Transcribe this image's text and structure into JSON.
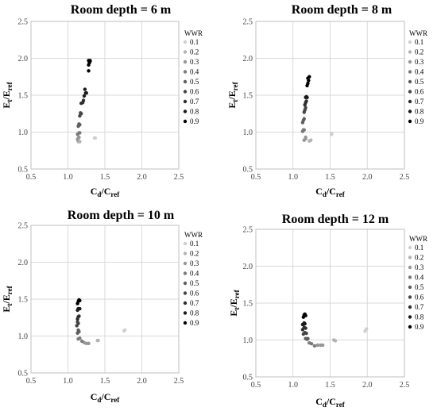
{
  "chart_data": [
    {
      "type": "scatter",
      "title": "Room depth = 6 m",
      "xlabel": "Cd/Cref",
      "xlabel_main": "C",
      "xlabel_sub1": "d",
      "xlabel_sep": "/C",
      "xlabel_sub2": "ref",
      "ylabel": "Et/Eref",
      "ylabel_main": "E",
      "ylabel_sub1": "t",
      "ylabel_sep": "/E",
      "ylabel_sub2": "ref",
      "xlim": [
        0.5,
        2.5
      ],
      "ylim": [
        0.5,
        2.5
      ],
      "xticks": [
        "0.5",
        "1.0",
        "1.5",
        "2.0",
        "2.5"
      ],
      "yticks": [
        "0.5",
        "1.0",
        "1.5",
        "2.0",
        "2.5"
      ],
      "grid": true,
      "legend": {
        "title": "WWR",
        "position": "right"
      },
      "series": [
        {
          "name": "0.1",
          "color": "#cfcfcf",
          "points": [
            [
              1.36,
              0.92
            ],
            [
              1.37,
              0.92
            ]
          ]
        },
        {
          "name": "0.2",
          "color": "#b3b3b3",
          "points": [
            [
              1.14,
              0.87
            ],
            [
              1.16,
              0.87
            ]
          ]
        },
        {
          "name": "0.3",
          "color": "#969696",
          "points": [
            [
              1.13,
              0.9
            ],
            [
              1.14,
              0.92
            ],
            [
              1.15,
              0.93
            ]
          ]
        },
        {
          "name": "0.4",
          "color": "#7a7a7a",
          "points": [
            [
              1.13,
              0.97
            ],
            [
              1.15,
              0.99
            ],
            [
              1.16,
              0.99
            ]
          ]
        },
        {
          "name": "0.5",
          "color": "#5e5e5e",
          "points": [
            [
              1.14,
              1.08
            ],
            [
              1.16,
              1.1
            ],
            [
              1.15,
              1.11
            ]
          ]
        },
        {
          "name": "0.6",
          "color": "#454545",
          "points": [
            [
              1.16,
              1.22
            ],
            [
              1.18,
              1.25
            ],
            [
              1.17,
              1.26
            ]
          ]
        },
        {
          "name": "0.7",
          "color": "#2e2e2e",
          "points": [
            [
              1.18,
              1.39
            ],
            [
              1.2,
              1.4
            ],
            [
              1.21,
              1.43
            ]
          ]
        },
        {
          "name": "0.8",
          "color": "#1a1a1a",
          "points": [
            [
              1.22,
              1.49
            ],
            [
              1.24,
              1.53
            ],
            [
              1.25,
              1.53
            ],
            [
              1.23,
              1.58
            ]
          ]
        },
        {
          "name": "0.9",
          "color": "#000000",
          "points": [
            [
              1.28,
              1.83
            ],
            [
              1.28,
              1.91
            ],
            [
              1.29,
              1.94
            ],
            [
              1.3,
              1.96
            ],
            [
              1.28,
              1.97
            ],
            [
              1.3,
              1.97
            ]
          ]
        }
      ]
    },
    {
      "type": "scatter",
      "title": "Room depth = 8 m",
      "xlabel": "Cd/Cref",
      "xlabel_main": "C",
      "xlabel_sub1": "d",
      "xlabel_sep": "/C",
      "xlabel_sub2": "ref",
      "ylabel": "Et/Eref",
      "ylabel_main": "E",
      "ylabel_sub1": "t",
      "ylabel_sep": "/E",
      "ylabel_sub2": "ref",
      "xlim": [
        0.5,
        2.5
      ],
      "ylim": [
        0.5,
        2.5
      ],
      "xticks": [
        "0.5",
        "1.0",
        "1.5",
        "2.0",
        "2.5"
      ],
      "yticks": [
        "0.5",
        "1.0",
        "1.5",
        "2.0",
        "2.5"
      ],
      "grid": true,
      "legend": {
        "title": "WWR",
        "position": "right"
      },
      "series": [
        {
          "name": "0.1",
          "color": "#cfcfcf",
          "points": [
            [
              1.52,
              0.97
            ],
            [
              1.52,
              0.98
            ]
          ]
        },
        {
          "name": "0.2",
          "color": "#b3b3b3",
          "points": [
            [
              1.22,
              0.88
            ],
            [
              1.24,
              0.89
            ]
          ]
        },
        {
          "name": "0.3",
          "color": "#969696",
          "points": [
            [
              1.15,
              0.89
            ],
            [
              1.17,
              0.91
            ],
            [
              1.17,
              0.93
            ]
          ]
        },
        {
          "name": "0.4",
          "color": "#7a7a7a",
          "points": [
            [
              1.13,
              1.01
            ],
            [
              1.14,
              1.03
            ],
            [
              1.15,
              1.03
            ]
          ]
        },
        {
          "name": "0.5",
          "color": "#5e5e5e",
          "points": [
            [
              1.13,
              1.13
            ],
            [
              1.14,
              1.16
            ],
            [
              1.15,
              1.18
            ]
          ]
        },
        {
          "name": "0.6",
          "color": "#454545",
          "points": [
            [
              1.15,
              1.27
            ],
            [
              1.16,
              1.3
            ],
            [
              1.17,
              1.33
            ]
          ]
        },
        {
          "name": "0.7",
          "color": "#2e2e2e",
          "points": [
            [
              1.16,
              1.37
            ],
            [
              1.17,
              1.4
            ],
            [
              1.18,
              1.42
            ]
          ]
        },
        {
          "name": "0.8",
          "color": "#1a1a1a",
          "points": [
            [
              1.17,
              1.47
            ],
            [
              1.18,
              1.48
            ],
            [
              1.19,
              1.47
            ]
          ]
        },
        {
          "name": "0.9",
          "color": "#000000",
          "points": [
            [
              1.19,
              1.63
            ],
            [
              1.2,
              1.66
            ],
            [
              1.21,
              1.7
            ],
            [
              1.2,
              1.73
            ],
            [
              1.22,
              1.75
            ]
          ]
        }
      ]
    },
    {
      "type": "scatter",
      "title": "Room depth = 10 m",
      "xlabel": "Cd/Cref",
      "xlabel_main": "C",
      "xlabel_sub1": "d",
      "xlabel_sep": "/C",
      "xlabel_sub2": "ref",
      "ylabel": "Et/Eref",
      "ylabel_main": "E",
      "ylabel_sub1": "t",
      "ylabel_sep": "/E",
      "ylabel_sub2": "ref",
      "xlim": [
        0.5,
        2.5
      ],
      "ylim": [
        0.5,
        2.5
      ],
      "xticks": [
        "0.5",
        "1.0",
        "1.5",
        "2.0",
        "2.5"
      ],
      "yticks": [
        "0.5",
        "1.0",
        "1.5",
        "2.0",
        "2.5"
      ],
      "grid": true,
      "legend": {
        "title": "WWR",
        "position": "right"
      },
      "series": [
        {
          "name": "0.1",
          "color": "#cfcfcf",
          "points": [
            [
              1.76,
              1.07
            ],
            [
              1.77,
              1.08
            ]
          ]
        },
        {
          "name": "0.2",
          "color": "#b3b3b3",
          "points": [
            [
              1.4,
              0.94
            ],
            [
              1.41,
              0.94
            ]
          ]
        },
        {
          "name": "0.3",
          "color": "#969696",
          "points": [
            [
              1.22,
              0.91
            ],
            [
              1.25,
              0.9
            ],
            [
              1.28,
              0.9
            ]
          ]
        },
        {
          "name": "0.4",
          "color": "#7a7a7a",
          "points": [
            [
              1.14,
              0.96
            ],
            [
              1.16,
              0.97
            ],
            [
              1.19,
              0.93
            ]
          ]
        },
        {
          "name": "0.5",
          "color": "#5e5e5e",
          "points": [
            [
              1.13,
              1.04
            ],
            [
              1.15,
              1.06
            ],
            [
              1.14,
              1.08
            ]
          ]
        },
        {
          "name": "0.6",
          "color": "#454545",
          "points": [
            [
              1.12,
              1.14
            ],
            [
              1.14,
              1.17
            ],
            [
              1.13,
              1.19
            ]
          ]
        },
        {
          "name": "0.7",
          "color": "#2e2e2e",
          "points": [
            [
              1.13,
              1.23
            ],
            [
              1.14,
              1.26
            ],
            [
              1.15,
              1.27
            ]
          ]
        },
        {
          "name": "0.8",
          "color": "#1a1a1a",
          "points": [
            [
              1.13,
              1.35
            ],
            [
              1.14,
              1.37
            ],
            [
              1.16,
              1.37
            ]
          ]
        },
        {
          "name": "0.9",
          "color": "#000000",
          "points": [
            [
              1.13,
              1.44
            ],
            [
              1.14,
              1.47
            ],
            [
              1.15,
              1.49
            ],
            [
              1.16,
              1.48
            ]
          ]
        }
      ]
    },
    {
      "type": "scatter",
      "title": "Room depth = 12 m",
      "xlabel": "Cd/Cref",
      "xlabel_main": "C",
      "xlabel_sub1": "d",
      "xlabel_sep": "/C",
      "xlabel_sub2": "ref",
      "ylabel": "Et/Eref",
      "ylabel_main": "E",
      "ylabel_sub1": "t",
      "ylabel_sep": "/E",
      "ylabel_sub2": "ref",
      "xlim": [
        0.5,
        2.5
      ],
      "ylim": [
        0.5,
        2.5
      ],
      "xticks": [
        "0.5",
        "1.0",
        "1.5",
        "2.0",
        "2.5"
      ],
      "yticks": [
        "0.5",
        "1.0",
        "1.5",
        "2.0",
        "2.5"
      ],
      "grid": true,
      "legend": {
        "title": "WWR",
        "position": "right"
      },
      "series": [
        {
          "name": "0.1",
          "color": "#cfcfcf",
          "points": [
            [
              1.97,
              1.12
            ],
            [
              1.99,
              1.15
            ]
          ]
        },
        {
          "name": "0.2",
          "color": "#b3b3b3",
          "points": [
            [
              1.55,
              1.0
            ],
            [
              1.57,
              0.99
            ]
          ]
        },
        {
          "name": "0.3",
          "color": "#969696",
          "points": [
            [
              1.33,
              0.93
            ],
            [
              1.37,
              0.93
            ],
            [
              1.4,
              0.93
            ]
          ]
        },
        {
          "name": "0.4",
          "color": "#7a7a7a",
          "points": [
            [
              1.22,
              0.96
            ],
            [
              1.25,
              0.95
            ],
            [
              1.29,
              0.92
            ]
          ]
        },
        {
          "name": "0.5",
          "color": "#5e5e5e",
          "points": [
            [
              1.17,
              1.02
            ],
            [
              1.19,
              1.01
            ],
            [
              1.2,
              1.02
            ]
          ]
        },
        {
          "name": "0.6",
          "color": "#454545",
          "points": [
            [
              1.14,
              1.08
            ],
            [
              1.16,
              1.1
            ],
            [
              1.18,
              1.09
            ]
          ]
        },
        {
          "name": "0.7",
          "color": "#2e2e2e",
          "points": [
            [
              1.13,
              1.14
            ],
            [
              1.15,
              1.17
            ],
            [
              1.17,
              1.16
            ]
          ]
        },
        {
          "name": "0.8",
          "color": "#1a1a1a",
          "points": [
            [
              1.13,
              1.21
            ],
            [
              1.15,
              1.23
            ],
            [
              1.16,
              1.22
            ]
          ]
        },
        {
          "name": "0.9",
          "color": "#000000",
          "points": [
            [
              1.14,
              1.31
            ],
            [
              1.15,
              1.34
            ],
            [
              1.16,
              1.35
            ],
            [
              1.17,
              1.33
            ]
          ]
        }
      ]
    }
  ]
}
